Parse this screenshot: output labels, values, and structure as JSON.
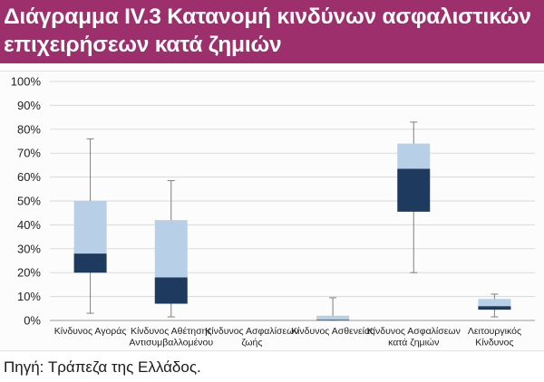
{
  "title": {
    "line1": "Διάγραμμα IV.3 Κατανομή κινδύνων ασφαλιστικών",
    "line2": "επιχειρήσεων κατά ζημιών"
  },
  "source": "Πηγή: Τράπεζα της Ελλάδος.",
  "colors": {
    "title_bg": "#9c2f6c",
    "upper_box": "#b8cfe8",
    "lower_box": "#1f3a5f",
    "whisker": "#7f7f7f",
    "gridline": "#d9d9d9"
  },
  "chart_data": {
    "type": "boxplot",
    "ylim": [
      0,
      100
    ],
    "ytick_values": [
      0,
      10,
      20,
      30,
      40,
      50,
      60,
      70,
      80,
      90,
      100
    ],
    "ytick_labels": [
      "0%",
      "10%",
      "20%",
      "30%",
      "40%",
      "50%",
      "60%",
      "70%",
      "80%",
      "90%",
      "100%"
    ],
    "grid": true,
    "categories": [
      [
        "Κίνδυνος Αγοράς"
      ],
      [
        "Κίνδυνος Αθέτησης",
        "Αντισυμβαλλομένου"
      ],
      [
        "Κίνδυνος Ασφαλίσεων",
        "ζωής"
      ],
      [
        "Κίνδυνος Ασθενείας"
      ],
      [
        "Κίνδυνος Ασφαλίσεων",
        "κατά ζημιών"
      ],
      [
        "Λειτουργικός",
        "Κίνδυνος"
      ]
    ],
    "boxes": [
      {
        "min": 3,
        "q1": 20,
        "median": 28,
        "q3": 50,
        "max": 76
      },
      {
        "min": 1.5,
        "q1": 7,
        "median": 18,
        "q3": 42,
        "max": 58.5
      },
      null,
      {
        "min": 0,
        "q1": 0,
        "median": 0.3,
        "q3": 2,
        "max": 9.5
      },
      {
        "min": 20,
        "q1": 45.5,
        "median": 63.5,
        "q3": 74,
        "max": 83
      },
      {
        "min": 1.5,
        "q1": 4.5,
        "median": 6,
        "q3": 9,
        "max": 11
      }
    ]
  }
}
